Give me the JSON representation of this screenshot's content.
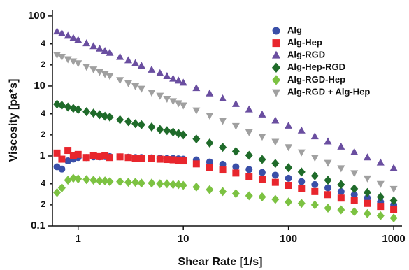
{
  "chart_data": {
    "type": "scatter",
    "xlabel": "Shear Rate [1/s]",
    "ylabel": "Viscosity [pa*s]",
    "xscale": "log",
    "yscale": "log",
    "legend": "upper right",
    "xlim": [
      0.57,
      1200
    ],
    "ylim": [
      0.1,
      120
    ],
    "xticks": [
      1,
      10,
      100,
      1000
    ],
    "yticks": [
      0.1,
      {
        "value": 0.2,
        "label": "2"
      },
      {
        "value": 0.4,
        "label": "4"
      },
      1,
      {
        "value": 2,
        "label": "2"
      },
      {
        "value": 4,
        "label": "4"
      },
      10,
      {
        "value": 20,
        "label": "2"
      },
      {
        "value": 40,
        "label": "4"
      },
      100
    ],
    "x": [
      0.63,
      0.7,
      0.8,
      0.9,
      1,
      1.2,
      1.4,
      1.6,
      1.8,
      2,
      2.5,
      3,
      3.5,
      4,
      5,
      6,
      7,
      8,
      9,
      10,
      13.3,
      17.8,
      23.7,
      31.6,
      42.2,
      56.2,
      75,
      100,
      133,
      178,
      237,
      316,
      422,
      562,
      750,
      1000
    ],
    "series": [
      {
        "name": "Alg",
        "color": "#3a4fa8",
        "marker": "circle",
        "values": [
          0.7,
          0.65,
          0.85,
          0.9,
          0.95,
          0.95,
          0.97,
          0.97,
          0.98,
          0.98,
          0.97,
          0.96,
          0.95,
          0.95,
          0.94,
          0.93,
          0.92,
          0.92,
          0.91,
          0.9,
          0.88,
          0.82,
          0.76,
          0.7,
          0.64,
          0.58,
          0.53,
          0.48,
          0.43,
          0.39,
          0.35,
          0.31,
          0.28,
          0.25,
          0.22,
          0.2
        ]
      },
      {
        "name": "Alg-Hep",
        "color": "#e8262d",
        "marker": "square",
        "values": [
          1.1,
          0.9,
          1.2,
          1.0,
          1.05,
          0.95,
          1.0,
          0.98,
          1.0,
          0.95,
          0.97,
          0.95,
          0.93,
          0.92,
          0.92,
          0.9,
          0.89,
          0.88,
          0.87,
          0.85,
          0.77,
          0.69,
          0.63,
          0.57,
          0.51,
          0.46,
          0.42,
          0.38,
          0.34,
          0.31,
          0.28,
          0.25,
          0.23,
          0.21,
          0.19,
          0.17
        ]
      },
      {
        "name": "Alg-RGD",
        "color": "#6a4ea0",
        "marker": "triangle-up",
        "values": [
          60,
          56.3,
          51.9,
          48.3,
          45.3,
          40.5,
          36.9,
          34.0,
          31.6,
          29.6,
          25.9,
          23.2,
          21.1,
          19.4,
          17.0,
          15.2,
          13.8,
          12.7,
          11.9,
          11.1,
          9.3,
          7.8,
          6.6,
          5.5,
          4.6,
          3.9,
          3.2,
          2.7,
          2.3,
          1.9,
          1.6,
          1.35,
          1.13,
          0.95,
          0.8,
          0.67
        ]
      },
      {
        "name": "Alg-Hep-RGD",
        "color": "#1f6b2a",
        "marker": "diamond",
        "values": [
          5.5,
          5.3,
          5.0,
          4.8,
          4.6,
          4.3,
          4.1,
          3.9,
          3.7,
          3.6,
          3.3,
          3.1,
          2.9,
          2.8,
          2.6,
          2.4,
          2.3,
          2.2,
          2.1,
          2.0,
          1.75,
          1.53,
          1.33,
          1.16,
          1.02,
          0.89,
          0.78,
          0.68,
          0.59,
          0.52,
          0.45,
          0.39,
          0.34,
          0.3,
          0.26,
          0.23
        ]
      },
      {
        "name": "Alg-RGD-Hep",
        "color": "#7cc242",
        "marker": "diamond",
        "values": [
          0.3,
          0.35,
          0.45,
          0.48,
          0.47,
          0.46,
          0.45,
          0.44,
          0.44,
          0.43,
          0.43,
          0.42,
          0.42,
          0.41,
          0.41,
          0.4,
          0.4,
          0.39,
          0.39,
          0.38,
          0.36,
          0.33,
          0.31,
          0.29,
          0.27,
          0.26,
          0.24,
          0.22,
          0.21,
          0.2,
          0.18,
          0.17,
          0.16,
          0.15,
          0.14,
          0.13
        ]
      },
      {
        "name": "Alg-RGD + Alg-Hep",
        "color": "#a0a0a0",
        "marker": "triangle-down",
        "values": [
          28,
          26.3,
          24.2,
          22.6,
          21.2,
          19.0,
          17.3,
          16.0,
          14.9,
          14.0,
          12.2,
          11.0,
          10.0,
          9.2,
          8.1,
          7.3,
          6.6,
          6.1,
          5.7,
          5.3,
          4.5,
          3.8,
          3.2,
          2.7,
          2.2,
          1.9,
          1.6,
          1.34,
          1.13,
          0.95,
          0.8,
          0.67,
          0.57,
          0.48,
          0.4,
          0.34
        ]
      }
    ]
  }
}
